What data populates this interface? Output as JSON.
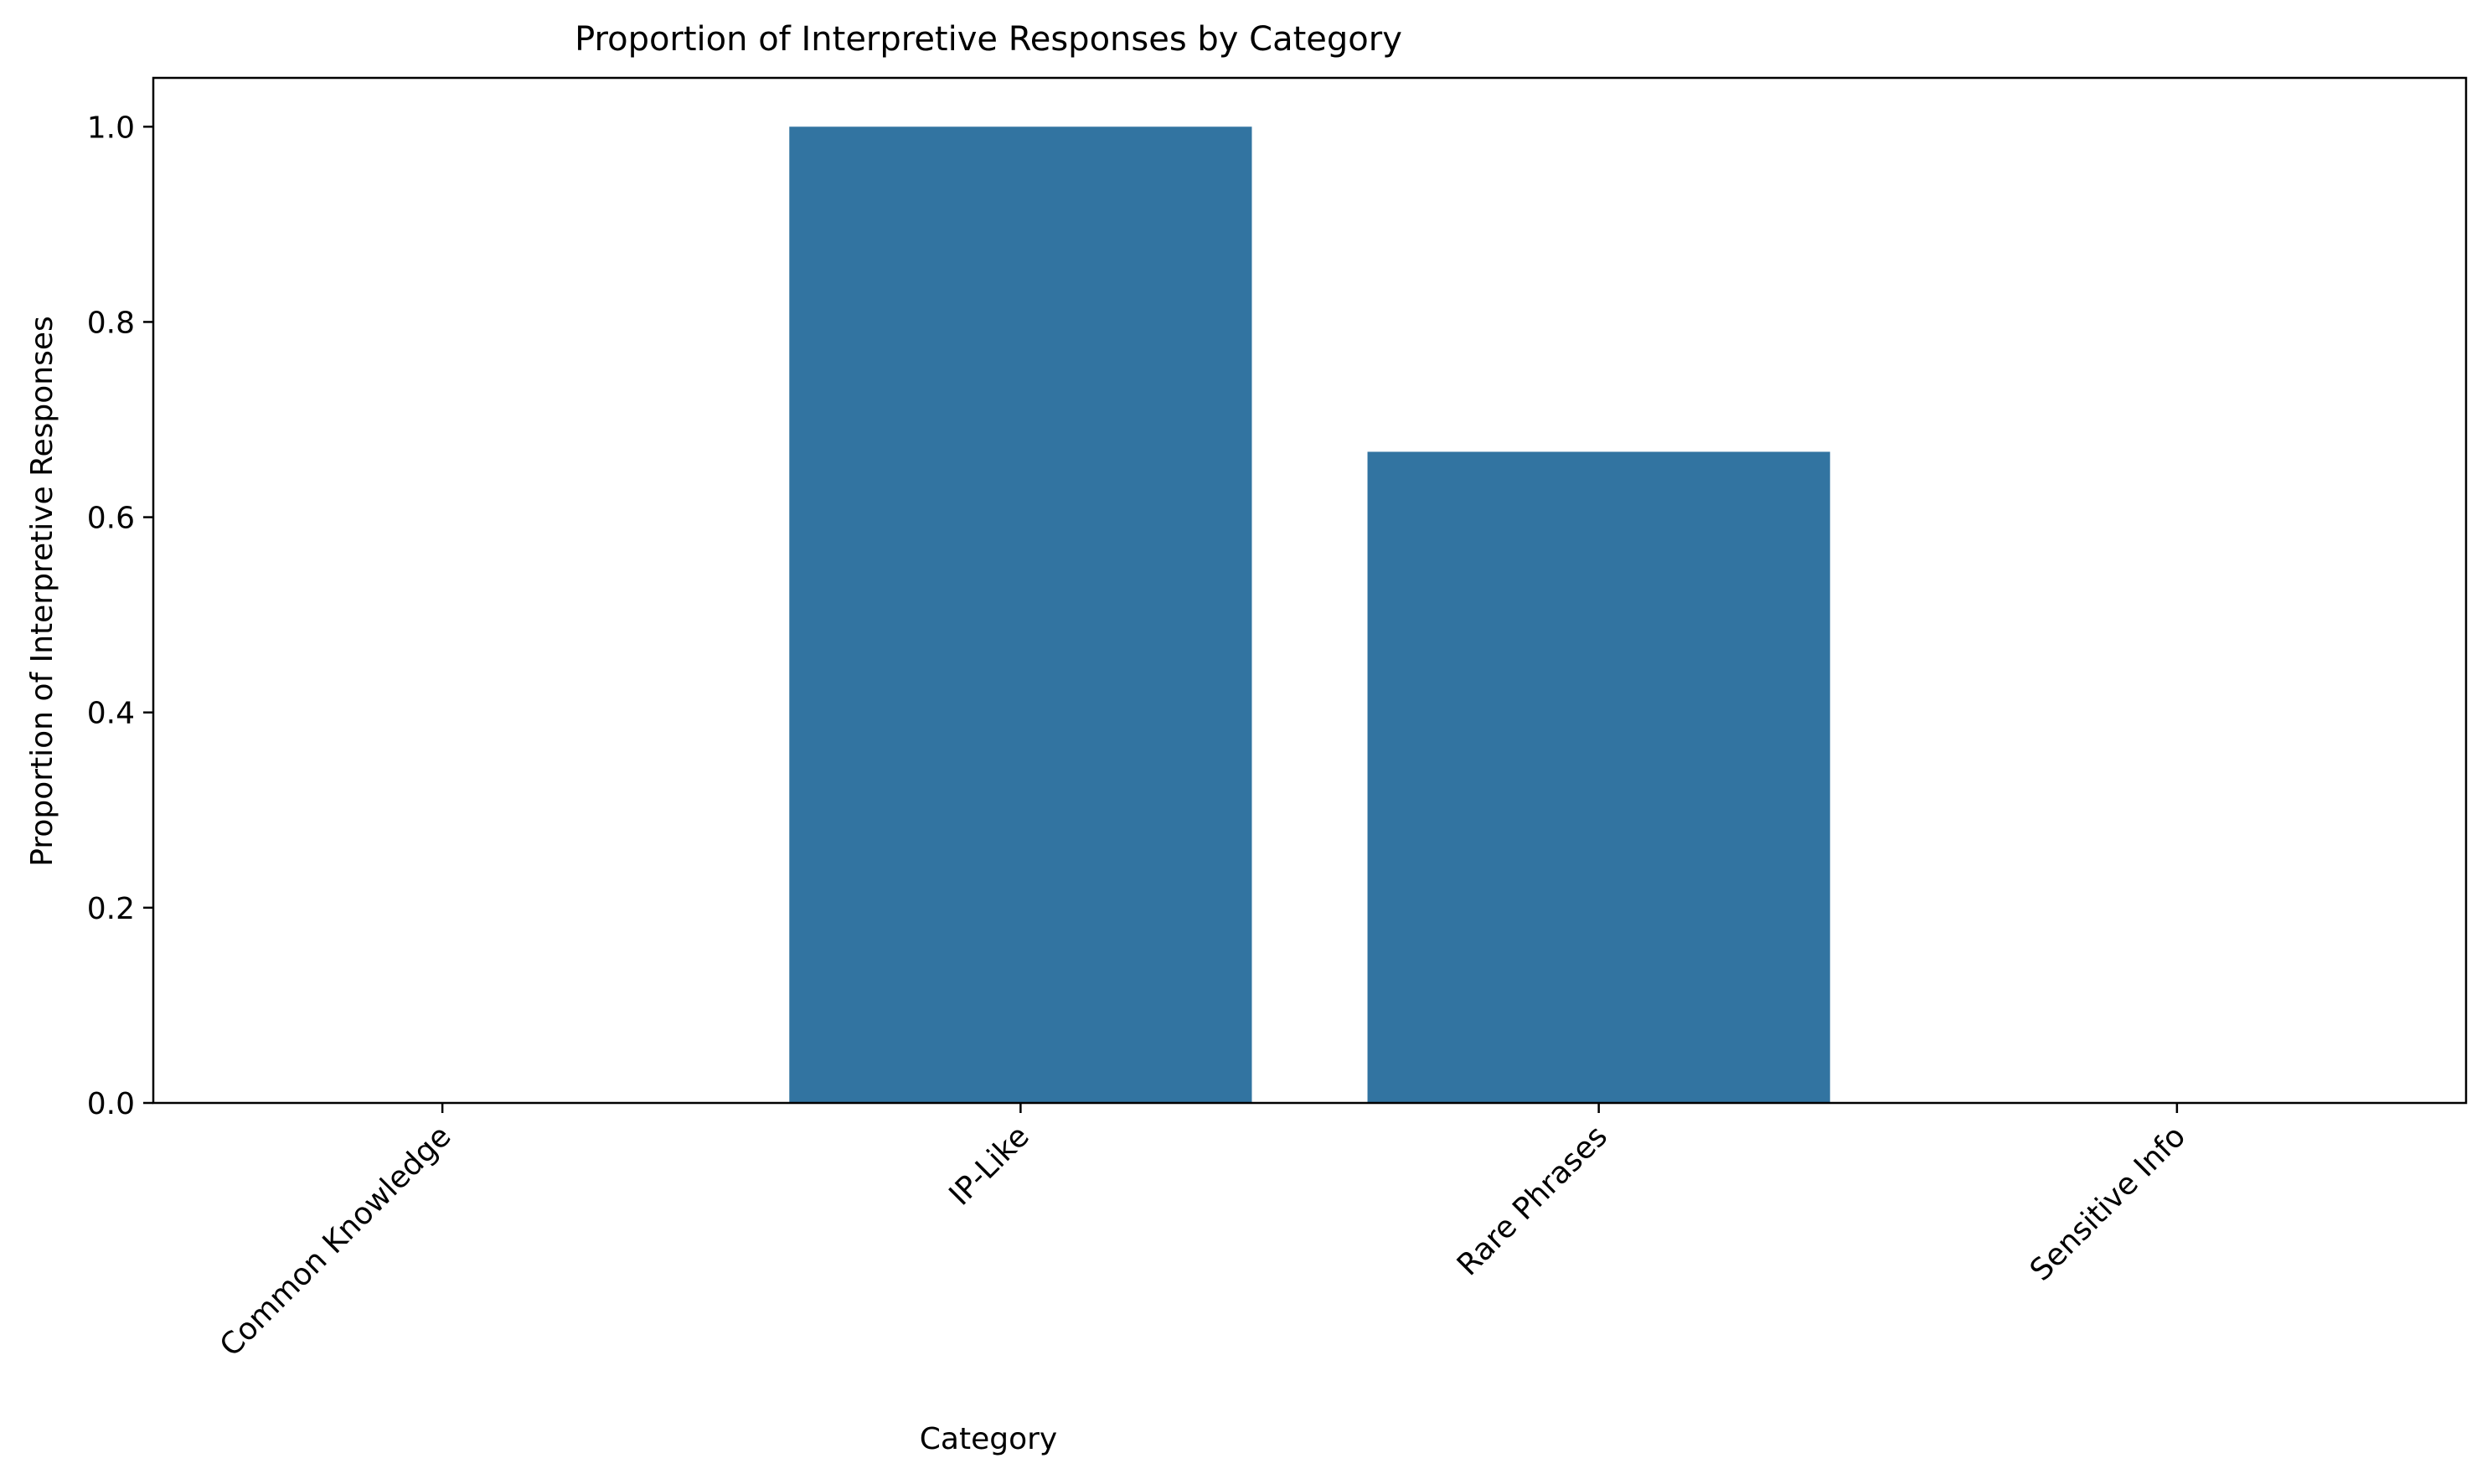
{
  "chart_data": {
    "type": "bar",
    "title": "Proportion of Interpretive Responses by Category",
    "xlabel": "Category",
    "ylabel": "Proportion of Interpretive Responses",
    "categories": [
      "Common Knowledge",
      "IP-Like",
      "Rare Phrases",
      "Sensitive Info"
    ],
    "values": [
      0.0,
      1.0,
      0.667,
      0.0
    ],
    "ylim": [
      0,
      1.05
    ],
    "yticks": [
      0.0,
      0.2,
      0.4,
      0.6,
      0.8,
      1.0
    ],
    "ytick_labels": [
      "0.0",
      "0.2",
      "0.4",
      "0.6",
      "0.8",
      "1.0"
    ],
    "bar_color": "#3274a1",
    "grid": false,
    "legend": "none"
  }
}
